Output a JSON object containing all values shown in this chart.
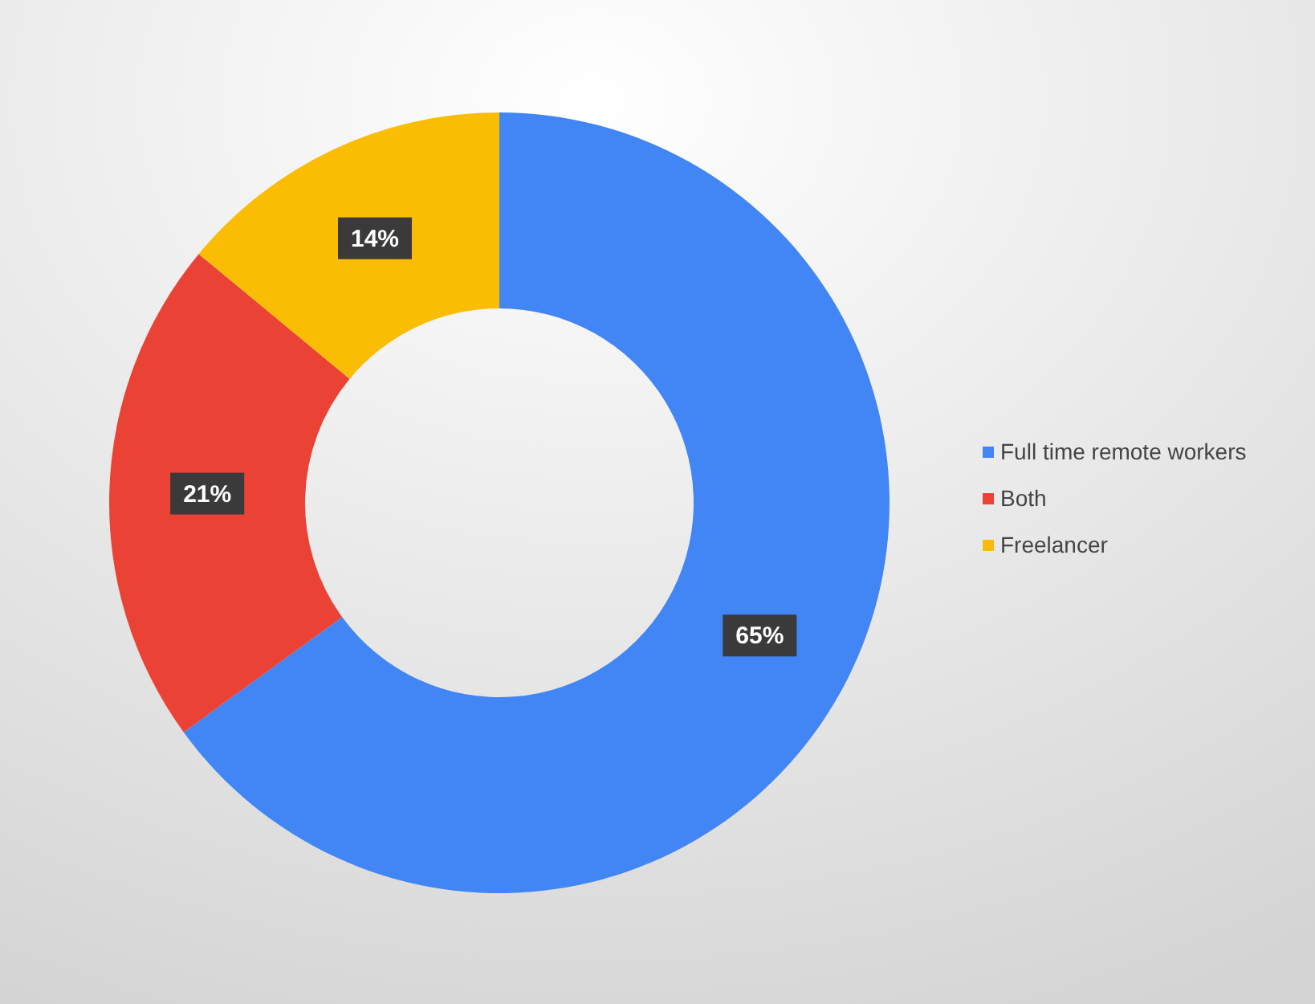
{
  "chart_data": {
    "type": "donut",
    "categories": [
      "Full time remote workers",
      "Both",
      "Freelancer"
    ],
    "values": [
      65,
      21,
      14
    ],
    "colors": [
      "#4285f4",
      "#ea4335",
      "#fbbc04"
    ],
    "value_labels": [
      "65%",
      "21%",
      "14%"
    ],
    "legend": "right"
  }
}
